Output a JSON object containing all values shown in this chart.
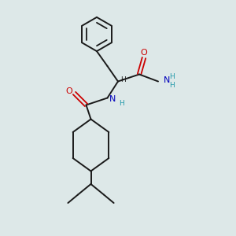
{
  "background_color": "#dde8e8",
  "bond_color": "#1a1a1a",
  "atom_colors": {
    "O": "#cc0000",
    "N": "#0000bb",
    "H_amide": "#2299aa",
    "H_alpha": "#1a1a1a"
  },
  "figsize": [
    3.0,
    3.0
  ],
  "dpi": 100,
  "xlim": [
    0,
    10
  ],
  "ylim": [
    0,
    10
  ]
}
